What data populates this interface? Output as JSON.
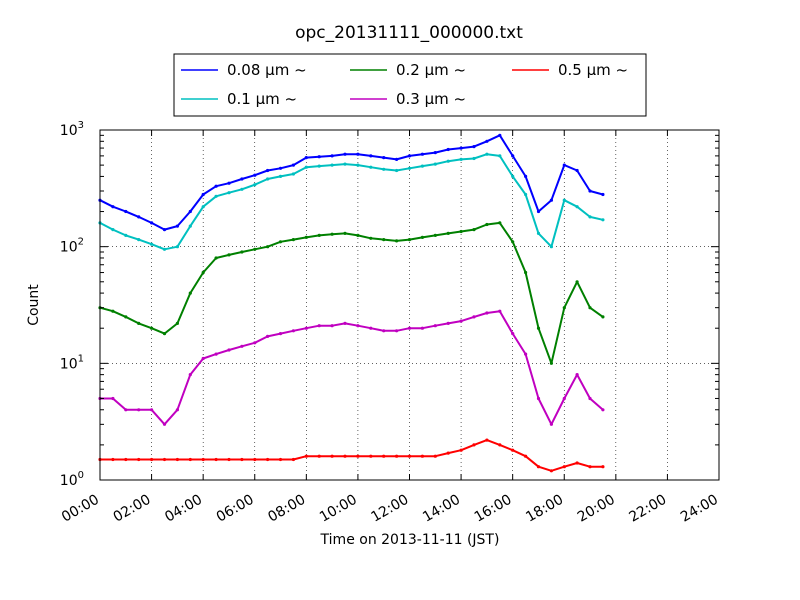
{
  "chart_data": {
    "type": "line",
    "title": "opc_20131111_000000.txt",
    "xlabel": "Time on 2013-11-11 (JST)",
    "ylabel": "Count",
    "x_unit": "hours",
    "xlim": [
      0,
      24
    ],
    "ylim": [
      1,
      1000
    ],
    "yscale": "log",
    "grid": true,
    "legend_position": "top",
    "x_ticks": [
      "00:00",
      "02:00",
      "04:00",
      "06:00",
      "08:00",
      "10:00",
      "12:00",
      "14:00",
      "16:00",
      "18:00",
      "20:00",
      "22:00",
      "24:00"
    ],
    "y_ticks": [
      {
        "base": "10",
        "exp": "0"
      },
      {
        "base": "10",
        "exp": "1"
      },
      {
        "base": "10",
        "exp": "2"
      },
      {
        "base": "10",
        "exp": "3"
      }
    ],
    "x": [
      0,
      0.5,
      1.0,
      1.5,
      2.0,
      2.5,
      3.0,
      3.5,
      4.0,
      4.5,
      5.0,
      5.5,
      6.0,
      6.5,
      7.0,
      7.5,
      8.0,
      8.5,
      9.0,
      9.5,
      10.0,
      10.5,
      11.0,
      11.5,
      12.0,
      12.5,
      13.0,
      13.5,
      14.0,
      14.5,
      15.0,
      15.5,
      16.0,
      16.5,
      17.0,
      17.5,
      18.0,
      18.5,
      19.0,
      19.5
    ],
    "series": [
      {
        "name": "0.08 μm ~",
        "color": "#0000ff",
        "values": [
          250,
          220,
          200,
          180,
          160,
          140,
          150,
          200,
          280,
          330,
          350,
          380,
          410,
          450,
          470,
          500,
          580,
          590,
          600,
          620,
          620,
          600,
          580,
          560,
          600,
          620,
          640,
          680,
          700,
          720,
          800,
          900,
          600,
          400,
          200,
          250,
          500,
          450,
          300,
          280
        ]
      },
      {
        "name": "0.1 μm ~",
        "color": "#00c0c0",
        "values": [
          160,
          140,
          125,
          115,
          105,
          95,
          100,
          150,
          220,
          270,
          290,
          310,
          340,
          380,
          400,
          420,
          480,
          490,
          500,
          510,
          500,
          480,
          460,
          450,
          470,
          490,
          510,
          540,
          560,
          570,
          620,
          600,
          400,
          280,
          130,
          100,
          250,
          220,
          180,
          170
        ]
      },
      {
        "name": "0.2 μm ~",
        "color": "#008000",
        "values": [
          30,
          28,
          25,
          22,
          20,
          18,
          22,
          40,
          60,
          80,
          85,
          90,
          95,
          100,
          110,
          115,
          120,
          125,
          128,
          130,
          125,
          118,
          115,
          112,
          115,
          120,
          125,
          130,
          135,
          140,
          155,
          160,
          110,
          60,
          20,
          10,
          30,
          50,
          30,
          25
        ]
      },
      {
        "name": "0.3 μm ~",
        "color": "#c000c0",
        "values": [
          5,
          5,
          4,
          4,
          4,
          3,
          4,
          8,
          11,
          12,
          13,
          14,
          15,
          17,
          18,
          19,
          20,
          21,
          21,
          22,
          21,
          20,
          19,
          19,
          20,
          20,
          21,
          22,
          23,
          25,
          27,
          28,
          18,
          12,
          5,
          3,
          5,
          8,
          5,
          4
        ]
      },
      {
        "name": "0.5 μm ~",
        "color": "#ff0000",
        "values": [
          1.5,
          1.5,
          1.5,
          1.5,
          1.5,
          1.5,
          1.5,
          1.5,
          1.5,
          1.5,
          1.5,
          1.5,
          1.5,
          1.5,
          1.5,
          1.5,
          1.6,
          1.6,
          1.6,
          1.6,
          1.6,
          1.6,
          1.6,
          1.6,
          1.6,
          1.6,
          1.6,
          1.7,
          1.8,
          2.0,
          2.2,
          2.0,
          1.8,
          1.6,
          1.3,
          1.2,
          1.3,
          1.4,
          1.3,
          1.3
        ]
      }
    ]
  }
}
